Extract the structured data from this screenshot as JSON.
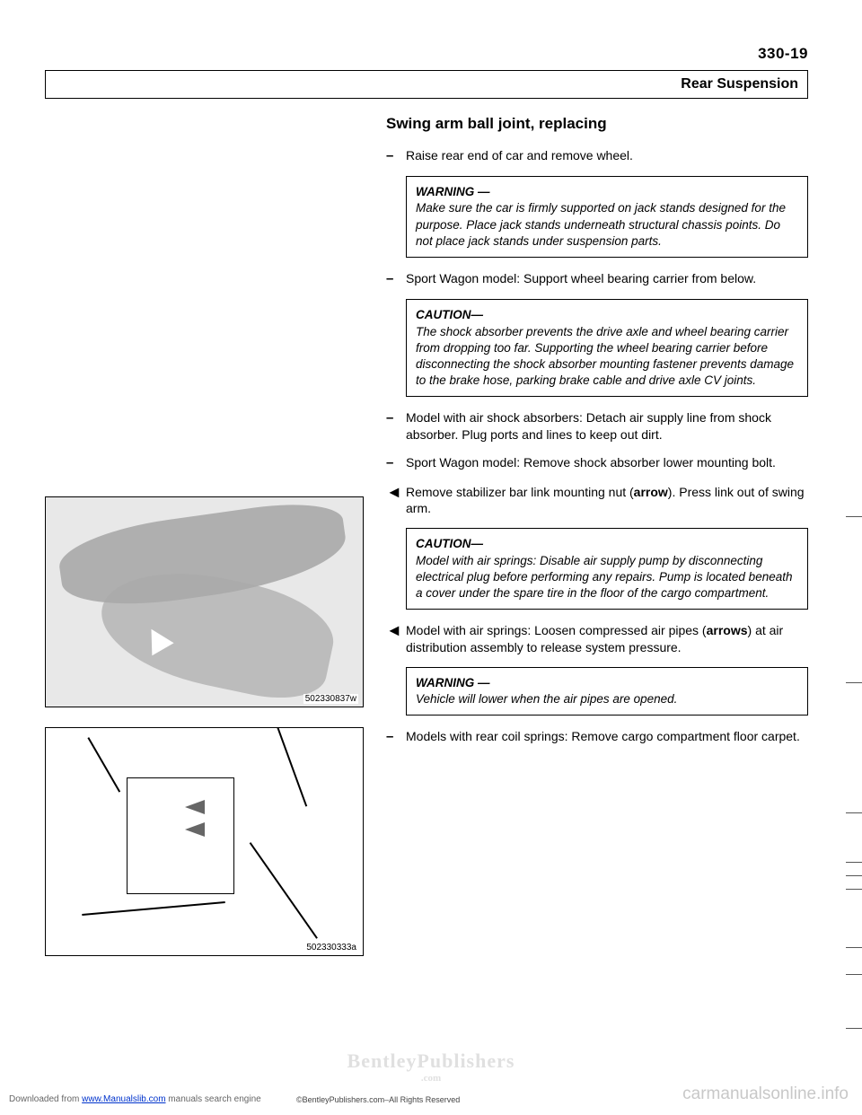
{
  "header": {
    "page_number": "330-19",
    "section_title": "Rear Suspension"
  },
  "heading": "Swing arm ball joint, replacing",
  "steps": [
    {
      "marker": "–",
      "text": "Raise rear end of car and remove wheel."
    },
    {
      "type": "box",
      "label": "WARNING —",
      "body": "Make sure the car is firmly supported on jack stands designed for the purpose. Place jack stands underneath structural chassis points. Do not place jack stands under suspension parts."
    },
    {
      "marker": "–",
      "text": "Sport Wagon model: Support wheel bearing carrier from below."
    },
    {
      "type": "box",
      "label": "CAUTION—",
      "body": "The shock absorber prevents the drive axle and wheel bearing carrier from dropping too far. Supporting the wheel bearing carrier before disconnecting the shock absorber mounting fastener prevents damage to the brake hose, parking brake cable and drive axle CV joints."
    },
    {
      "marker": "–",
      "text": "Model with air shock absorbers: Detach air supply line from shock absorber. Plug ports and lines to keep out dirt."
    },
    {
      "marker": "–",
      "text": "Sport Wagon model: Remove shock absorber lower mounting bolt."
    },
    {
      "marker": "◄",
      "text_html": "Remove stabilizer bar link mounting nut (<b>arrow</b>). Press link out of swing arm."
    },
    {
      "type": "box",
      "label": "CAUTION—",
      "body": "Model with air springs: Disable air supply pump by disconnecting electrical plug before performing any repairs. Pump is located beneath a cover under the spare tire in the floor of the cargo compartment."
    },
    {
      "marker": "◄",
      "text_html": "Model with air springs: Loosen compressed air pipes (<b>arrows</b>) at air distribution assembly to release system pressure."
    },
    {
      "type": "box",
      "label": "WARNING —",
      "body": "Vehicle will lower when the air pipes are opened."
    },
    {
      "marker": "–",
      "text": "Models with rear coil springs: Remove cargo compartment floor carpet."
    }
  ],
  "figures": {
    "fig1_id": "502330837w",
    "fig2_id": "502330333a"
  },
  "watermark": {
    "publisher": "BentleyPublishers",
    "publisher_sub": ".com"
  },
  "footer": {
    "downloaded_prefix": "Downloaded from ",
    "downloaded_link": "www.Manualslib.com",
    "downloaded_suffix": " manuals search engine",
    "copyright": "©BentleyPublishers.com–All Rights Reserved",
    "site": "carmanualsonline.info"
  }
}
